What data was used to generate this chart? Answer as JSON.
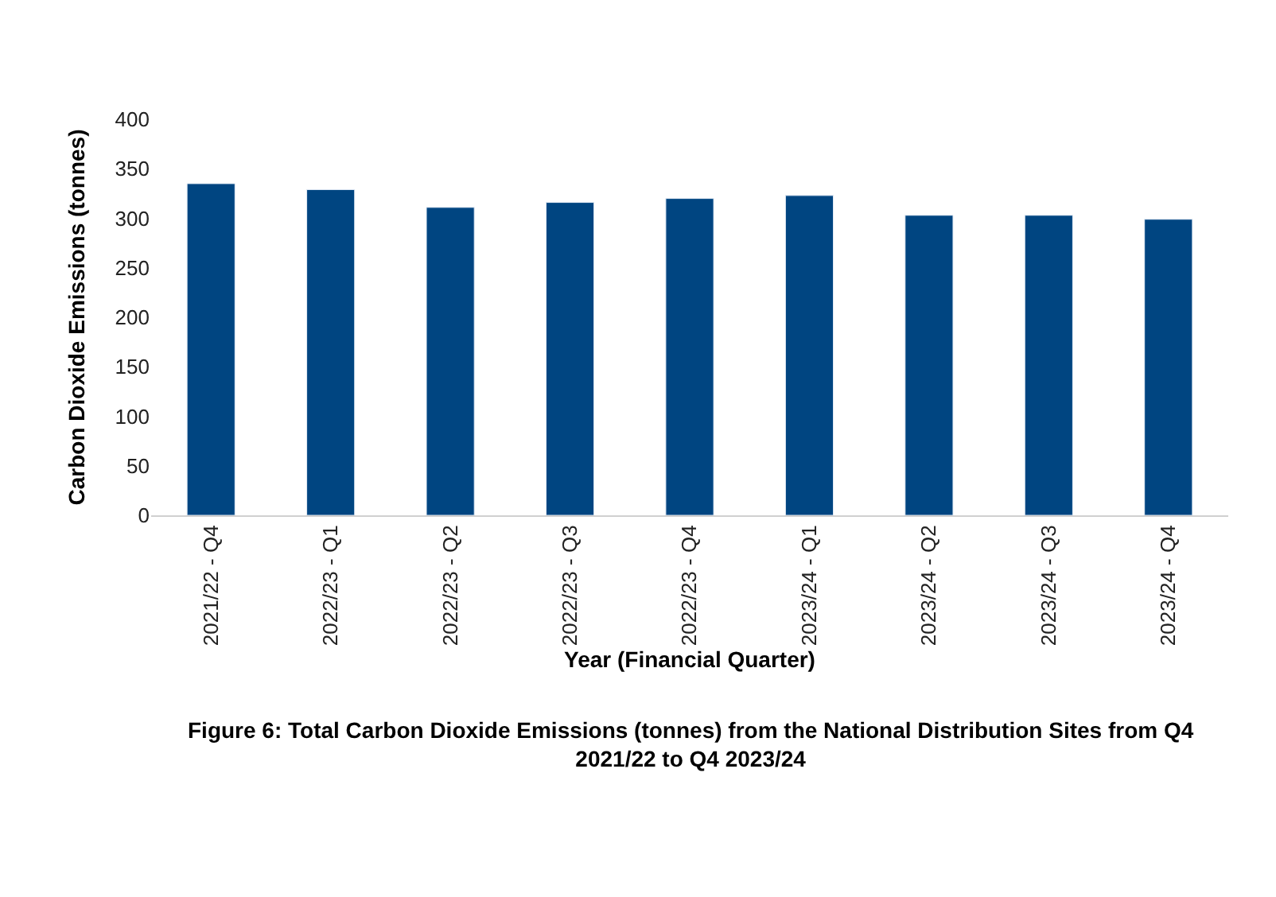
{
  "chart_data": {
    "type": "bar",
    "title": "Figure 6: Total Carbon Dioxide Emissions (tonnes) from the National Distribution Sites from Q4 2021/22 to Q4 2023/24",
    "xlabel": "Year (Financial Quarter)",
    "ylabel": "Carbon Dioxide Emissions (tonnes)",
    "categories": [
      "2021/22 - Q4",
      "2022/23 - Q1",
      "2022/23 - Q2",
      "2022/23 - Q3",
      "2022/23 - Q4",
      "2023/24 - Q1",
      "2023/24 - Q2",
      "2023/24 - Q3",
      "2023/24 - Q4"
    ],
    "values": [
      335,
      329,
      311,
      316,
      320,
      323,
      303,
      303,
      299
    ],
    "color": "#004581",
    "ylim": [
      0,
      400
    ],
    "yticks": [
      0,
      50,
      100,
      150,
      200,
      250,
      300,
      350,
      400
    ]
  }
}
